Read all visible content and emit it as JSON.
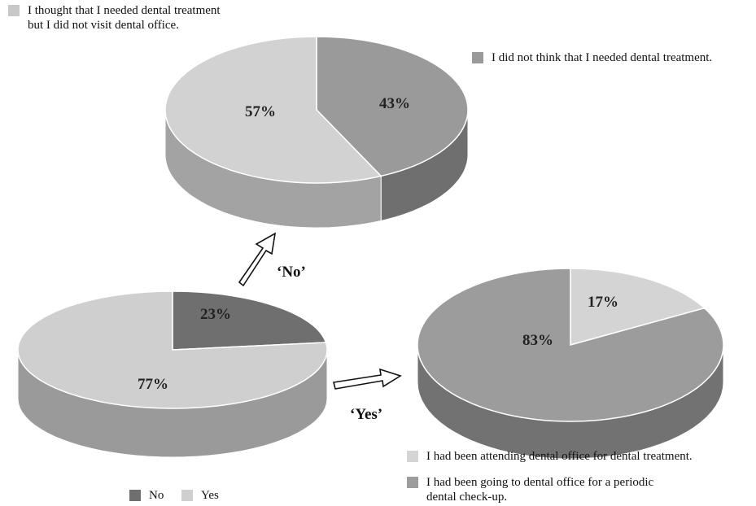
{
  "chart_data": [
    {
      "type": "pie",
      "id": "main",
      "title": "",
      "slices": [
        {
          "label": "No",
          "value": 23,
          "text": "23%",
          "color": "#6f6f6f",
          "side": "#505050"
        },
        {
          "label": "Yes",
          "value": 77,
          "text": "77%",
          "color": "#cfcfcf",
          "side": "#9a9a9a"
        }
      ],
      "legend": [
        {
          "label": "No",
          "color": "#6f6f6f"
        },
        {
          "label": "Yes",
          "color": "#cfcfcf"
        }
      ],
      "legend_position": "bottom"
    },
    {
      "type": "pie",
      "id": "no_branch",
      "title": "",
      "slices": [
        {
          "label": "I did not think that I needed dental treatment.",
          "value": 43,
          "text": "43%",
          "color": "#9a9a9a",
          "side": "#6f6f6f"
        },
        {
          "label": "I thought that I needed dental treatment but I did not visit dental office.",
          "value": 57,
          "text": "57%",
          "color": "#d2d2d2",
          "side": "#a3a3a3"
        }
      ],
      "legend_position": "top"
    },
    {
      "type": "pie",
      "id": "yes_branch",
      "title": "",
      "slices": [
        {
          "label": "I had been attending dental office for dental treatment.",
          "value": 17,
          "text": "17%",
          "color": "#d4d4d4",
          "side": "#a6a6a6"
        },
        {
          "label": "I had been going to dental office for a periodic dental check-up.",
          "value": 83,
          "text": "83%",
          "color": "#9c9c9c",
          "side": "#727272"
        }
      ],
      "legend_position": "bottom"
    }
  ],
  "legends": {
    "top_left": {
      "line1": "I thought that I needed dental treatment",
      "line2": "but I did not visit dental office.",
      "color": "#c8c8c8"
    },
    "top_right": {
      "text": "I did not think that I needed dental treatment.",
      "color": "#9a9a9a"
    },
    "bottom_right_1": {
      "text": "I had been attending dental office for dental treatment.",
      "color": "#d4d4d4"
    },
    "bottom_right_2": {
      "line1": "I had been going to dental office for a periodic",
      "line2": "dental check-up.",
      "color": "#9c9c9c"
    },
    "main_no": {
      "text": "No",
      "color": "#6f6f6f"
    },
    "main_yes": {
      "text": "Yes",
      "color": "#cfcfcf"
    }
  },
  "flows": {
    "no_label": "‘No’",
    "yes_label": "‘Yes’"
  }
}
